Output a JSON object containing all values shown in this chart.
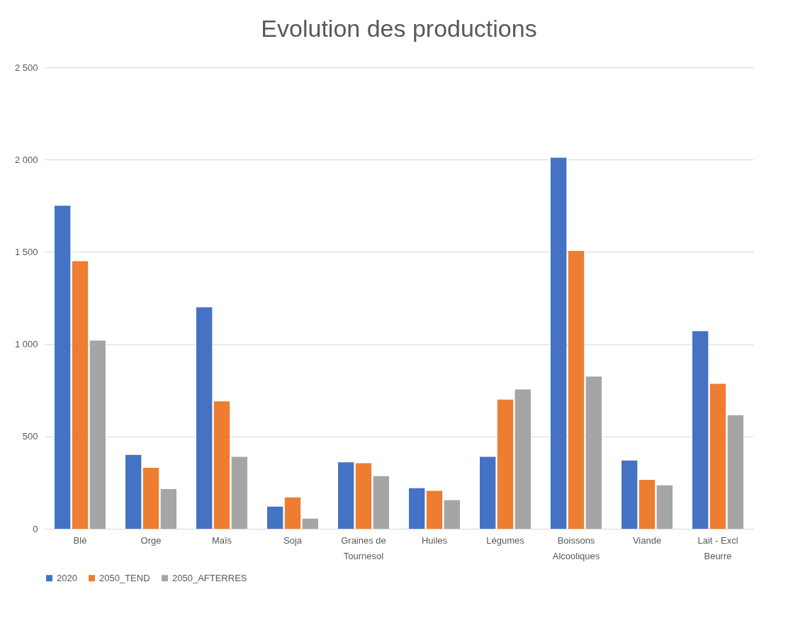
{
  "chart_data": {
    "type": "bar",
    "title": "Evolution des productions",
    "categories": [
      "Blé",
      "Orge",
      "Maïs",
      "Soja",
      "Graines de Tournesol",
      "Huiles",
      "Légumes",
      "Boissons Alcooliques",
      "Viande",
      "Lait - Excl Beurre"
    ],
    "series": [
      {
        "name": "2020",
        "color": "#4472c4",
        "values": [
          1750,
          400,
          1200,
          120,
          360,
          220,
          390,
          2010,
          370,
          1070
        ]
      },
      {
        "name": "2050_TEND",
        "color": "#ed7d31",
        "values": [
          1450,
          330,
          690,
          170,
          355,
          205,
          700,
          1505,
          265,
          785
        ]
      },
      {
        "name": "2050_AFTERRES",
        "color": "#a5a5a5",
        "values": [
          1020,
          215,
          390,
          55,
          285,
          155,
          755,
          825,
          235,
          615
        ]
      }
    ],
    "ylim": [
      0,
      2500
    ],
    "yticks": [
      0,
      500,
      {
        "value": 1000,
        "label": "1 000"
      },
      {
        "value": 1500,
        "label": "1 500"
      },
      {
        "value": 2000,
        "label": "2 000"
      },
      {
        "value": 2500,
        "label": "2 500"
      }
    ],
    "grid": "y",
    "legend": "bottom"
  }
}
